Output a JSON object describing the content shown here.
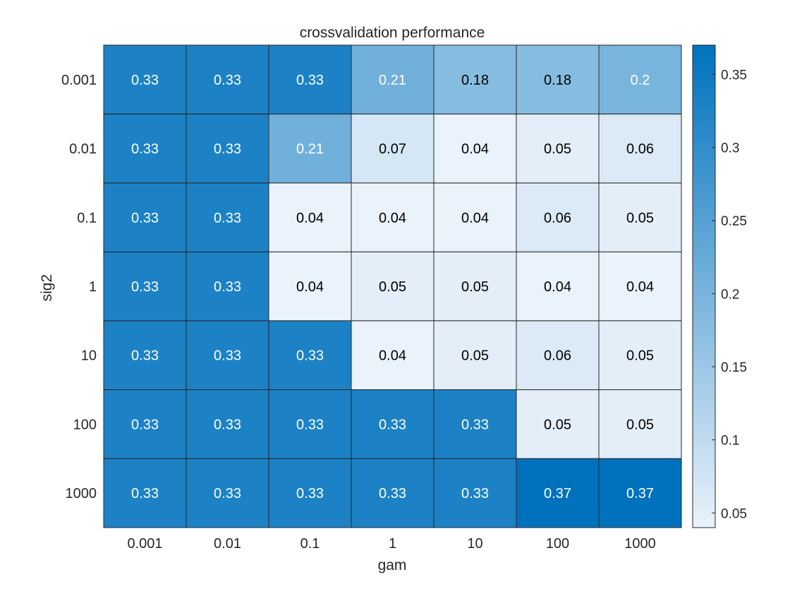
{
  "chart_data": {
    "type": "heatmap",
    "title": "crossvalidation performance",
    "xlabel": "gam",
    "ylabel": "sig2",
    "x_categories": [
      "0.001",
      "0.01",
      "0.1",
      "1",
      "10",
      "100",
      "1000"
    ],
    "y_categories": [
      "0.001",
      "0.01",
      "0.1",
      "1",
      "10",
      "100",
      "1000"
    ],
    "values": [
      [
        0.33,
        0.33,
        0.33,
        0.21,
        0.18,
        0.18,
        0.2
      ],
      [
        0.33,
        0.33,
        0.21,
        0.07,
        0.04,
        0.05,
        0.06
      ],
      [
        0.33,
        0.33,
        0.04,
        0.04,
        0.04,
        0.06,
        0.05
      ],
      [
        0.33,
        0.33,
        0.04,
        0.05,
        0.05,
        0.04,
        0.04
      ],
      [
        0.33,
        0.33,
        0.33,
        0.04,
        0.05,
        0.06,
        0.05
      ],
      [
        0.33,
        0.33,
        0.33,
        0.33,
        0.33,
        0.05,
        0.05
      ],
      [
        0.33,
        0.33,
        0.33,
        0.33,
        0.33,
        0.37,
        0.37
      ]
    ],
    "colorbar": {
      "range": [
        0.04,
        0.37
      ],
      "ticks": [
        0.05,
        0.1,
        0.15,
        0.2,
        0.25,
        0.3,
        0.35
      ],
      "tick_labels": [
        "0.05",
        "0.1",
        "0.15",
        "0.2",
        "0.25",
        "0.3",
        "0.35"
      ],
      "colormap": [
        "#eaf2fb",
        "#0072bd"
      ]
    },
    "text_colors": {
      "dark_cell": "#ffffff",
      "light_cell": "#000000"
    },
    "cell_border_color": "#262626"
  }
}
